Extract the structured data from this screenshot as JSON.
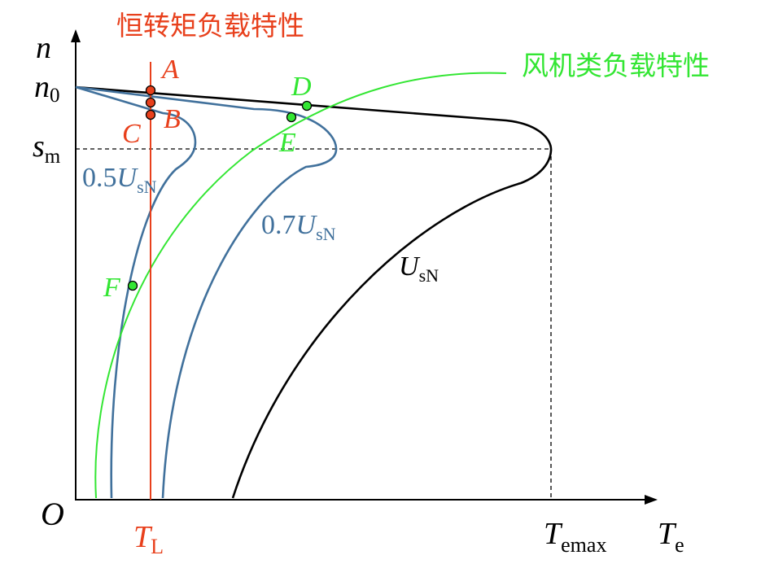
{
  "titles": {
    "constant_torque": "恒转矩负载特性",
    "fan_load": "风机类负载特性"
  },
  "axes": {
    "y_symbol": "n",
    "x_symbol_main": "T",
    "x_symbol_sub": "e",
    "origin": "O",
    "n0_main": "n",
    "n0_sub": "0",
    "sm_main": "s",
    "sm_sub": "m",
    "tl_main": "T",
    "tl_sub": "L",
    "temax_main": "T",
    "temax_sub": "emax"
  },
  "curves": {
    "usn": {
      "main": "U",
      "sub": "sN"
    },
    "u07": {
      "coef": "0.7",
      "main": "U",
      "sub": "sN"
    },
    "u05": {
      "coef": "0.5",
      "main": "U",
      "sub": "sN"
    }
  },
  "points": {
    "A": "A",
    "B": "B",
    "C": "C",
    "D": "D",
    "E": "E",
    "F": "F"
  },
  "colors": {
    "axis": "#000000",
    "usn_curve": "#000000",
    "reduced_voltage_curves": "#41719c",
    "constant_torque": "#e8401c",
    "fan_load": "#33e633",
    "point_red_fill": "#e8401c",
    "point_green_fill": "#33e633"
  }
}
